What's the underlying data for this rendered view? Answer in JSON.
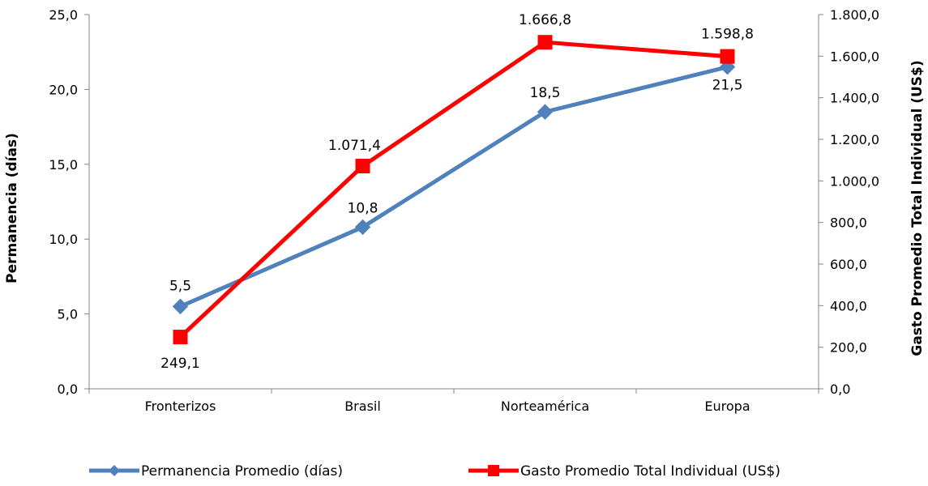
{
  "chart_data": {
    "type": "line",
    "categories": [
      "Fronterizos",
      "Brasil",
      "Norteamérica",
      "Europa"
    ],
    "series": [
      {
        "name": "Permanencia Promedio (días)",
        "axis": "left",
        "color": "#4F81BD",
        "marker": "diamond",
        "values": [
          5.5,
          10.8,
          18.5,
          21.5
        ],
        "labels": [
          "5,5",
          "10,8",
          "18,5",
          "21,5"
        ]
      },
      {
        "name": "Gasto Promedio Total Individual (US$)",
        "axis": "right",
        "color": "#FF0000",
        "marker": "square",
        "values": [
          249.1,
          1071.4,
          1666.8,
          1598.8
        ],
        "labels": [
          "249,1",
          "1.071,4",
          "1.666,8",
          "1.598,8"
        ]
      }
    ],
    "ylabel_left": "Permanencia (días)",
    "ylabel_right": "Gasto Promedio Total Individual (US$)",
    "ylim_left": [
      0,
      25
    ],
    "ylim_right": [
      0,
      1800
    ],
    "yticks_left": [
      "0,0",
      "5,0",
      "10,0",
      "15,0",
      "20,0",
      "25,0"
    ],
    "yticks_right": [
      "0,0",
      "200,0",
      "400,0",
      "600,0",
      "800,0",
      "1.000,0",
      "1.200,0",
      "1.400,0",
      "1.600,0",
      "1.800,0"
    ],
    "grid": false,
    "legend_position": "bottom"
  }
}
